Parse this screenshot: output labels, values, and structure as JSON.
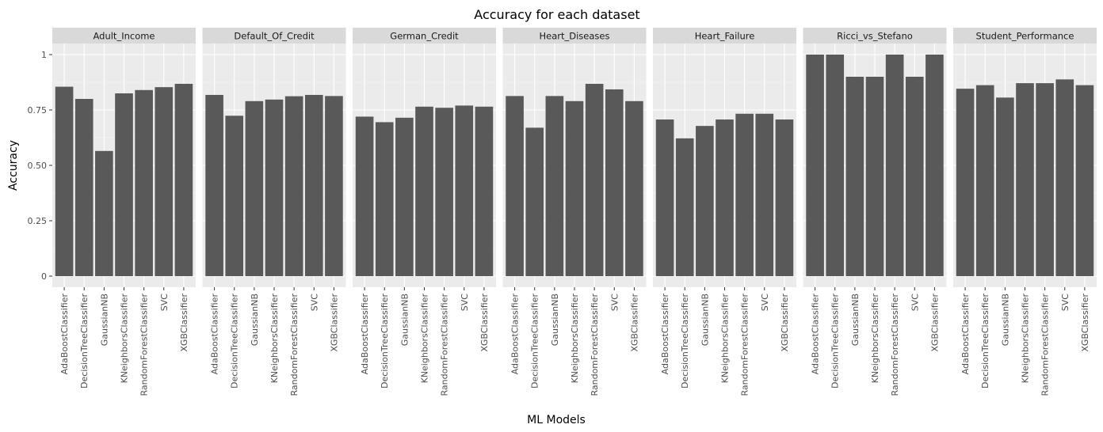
{
  "chart_data": {
    "type": "bar",
    "title": "Accuracy for each dataset",
    "xlabel": "ML Models",
    "ylabel": "Accuracy",
    "ylim": [
      0,
      1
    ],
    "yticks": [
      0,
      0.25,
      0.5,
      0.75,
      1
    ],
    "ytick_labels": [
      "0",
      "0.25",
      "0.50",
      "0.75",
      "1"
    ],
    "grid": true,
    "facets_layout": "single row of panels",
    "categories": [
      "AdaBoostClassifier",
      "DecisionTreeClassifier",
      "GaussianNB",
      "KNeighborsClassifier",
      "RandomForestClassifier",
      "SVC",
      "XGBClassifier"
    ],
    "panels": [
      {
        "name": "Adult_Income",
        "values": [
          0.855,
          0.8,
          0.565,
          0.825,
          0.84,
          0.853,
          0.868
        ]
      },
      {
        "name": "Default_Of_Credit",
        "values": [
          0.818,
          0.724,
          0.79,
          0.797,
          0.812,
          0.818,
          0.813
        ]
      },
      {
        "name": "German_Credit",
        "values": [
          0.72,
          0.695,
          0.715,
          0.765,
          0.76,
          0.77,
          0.765
        ]
      },
      {
        "name": "Heart_Diseases",
        "values": [
          0.813,
          0.67,
          0.813,
          0.79,
          0.868,
          0.843,
          0.79
        ]
      },
      {
        "name": "Heart_Failure",
        "values": [
          0.707,
          0.622,
          0.678,
          0.707,
          0.733,
          0.733,
          0.707
        ]
      },
      {
        "name": "Ricci_vs_Stefano",
        "values": [
          1.0,
          1.0,
          0.9,
          0.9,
          1.0,
          0.9,
          1.0
        ]
      },
      {
        "name": "Student_Performance",
        "values": [
          0.846,
          0.862,
          0.806,
          0.871,
          0.871,
          0.888,
          0.862
        ]
      }
    ],
    "colors": {
      "bar": "#595959",
      "panel_background": "#ebebeb",
      "strip_background": "#d9d9d9",
      "grid_major": "#ffffff",
      "grid_minor": "#f5f5f5",
      "tick_text": "#4d4d4d"
    }
  }
}
